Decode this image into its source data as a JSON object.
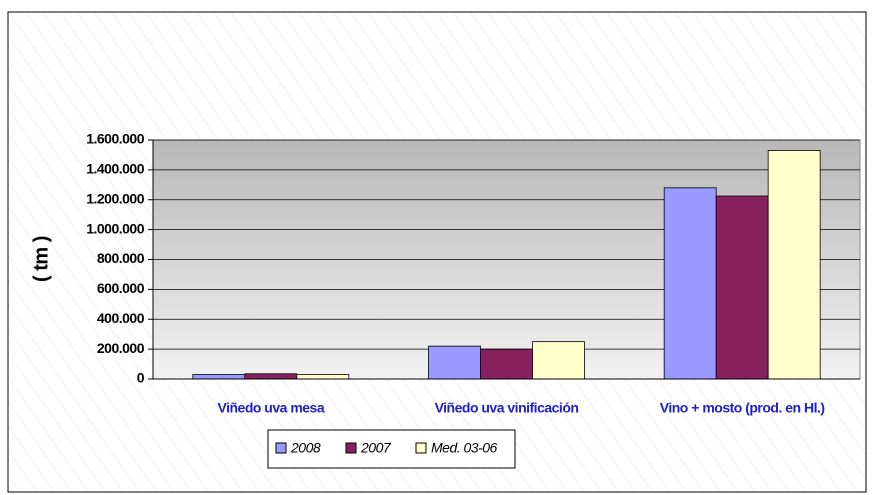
{
  "chart_data": {
    "type": "bar",
    "ylabel": "( tm )",
    "categories": [
      "Viñedo uva mesa",
      "Viñedo uva vinificación",
      "Vino + mosto (prod. en Hl.)"
    ],
    "series": [
      {
        "name": "2008",
        "color": "#9999ff",
        "values": [
          30000,
          220000,
          1280000
        ]
      },
      {
        "name": "2007",
        "color": "#86205e",
        "values": [
          35000,
          200000,
          1225000
        ]
      },
      {
        "name": "Med. 03-06",
        "color": "#ffffcc",
        "values": [
          30000,
          250000,
          1530000
        ]
      }
    ],
    "ylim": [
      0,
      1600000
    ],
    "yticks": [
      0,
      {
        "value": 200000,
        "label": "200.000"
      },
      {
        "value": 400000,
        "label": "400.000"
      },
      {
        "value": 600000,
        "label": "600.000"
      },
      {
        "value": 800000,
        "label": "800.000"
      },
      {
        "value": 1000000,
        "label": "1.000.000"
      },
      {
        "value": 1200000,
        "label": "1.200.000"
      },
      {
        "value": 1400000,
        "label": "1.400.000"
      },
      {
        "value": 1600000,
        "label": "1.600.000"
      }
    ],
    "grid": true,
    "legend": "bottom"
  }
}
